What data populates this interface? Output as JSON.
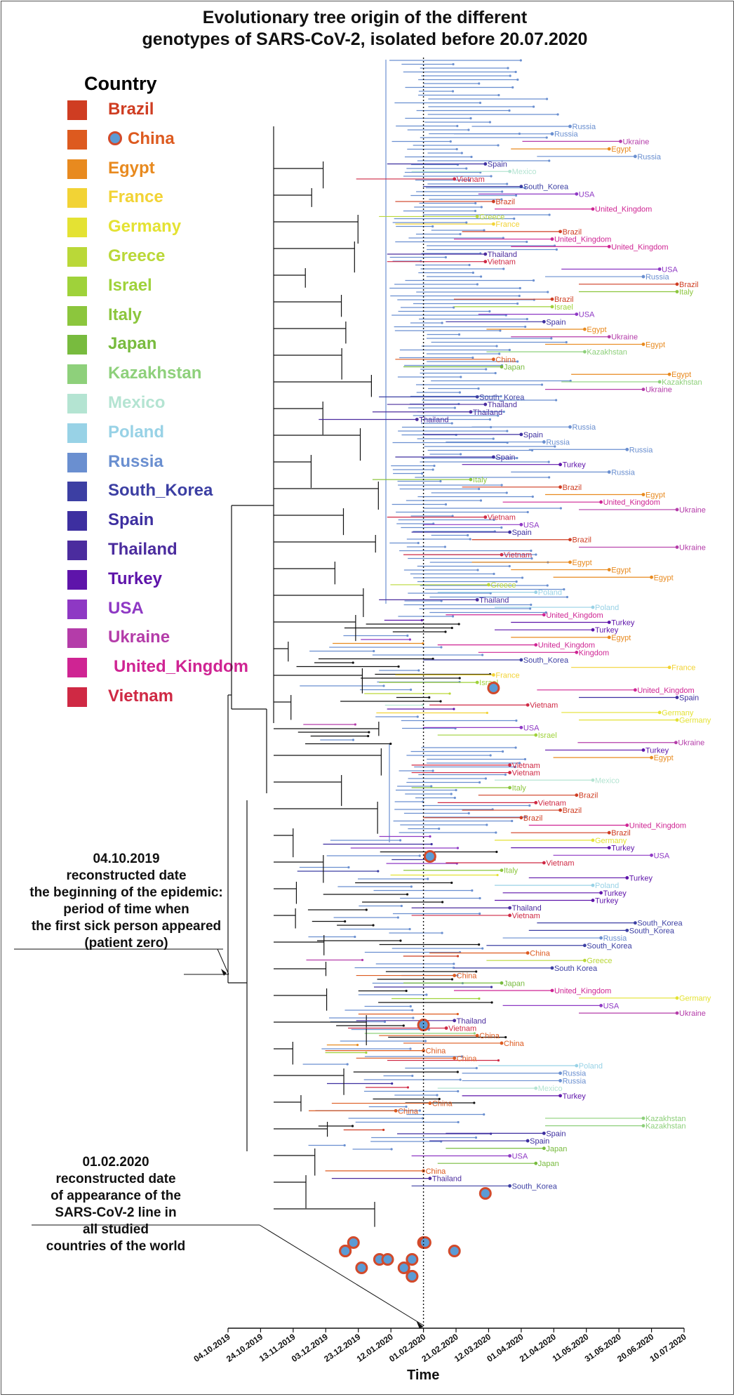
{
  "title_line1": "Evolutionary tree origin of the different",
  "title_line2": "genotypes of SARS-CoV-2, isolated before 20.07.2020",
  "legend_title": "Country",
  "legend": [
    {
      "name": "Brazil",
      "color": "#cf3d22"
    },
    {
      "name": "China",
      "color": "#dd5a1f",
      "marker": true
    },
    {
      "name": "Egypt",
      "color": "#e88a1f"
    },
    {
      "name": "France",
      "color": "#f2d335"
    },
    {
      "name": "Germany",
      "color": "#e4e233"
    },
    {
      "name": "Greece",
      "color": "#bad838"
    },
    {
      "name": "Israel",
      "color": "#9fd23a"
    },
    {
      "name": "Italy",
      "color": "#8cc63d"
    },
    {
      "name": "Japan",
      "color": "#78bb3e"
    },
    {
      "name": "Kazakhstan",
      "color": "#8ed07b"
    },
    {
      "name": "Mexico",
      "color": "#b4e4d2"
    },
    {
      "name": "Poland",
      "color": "#98d2e6"
    },
    {
      "name": "Russia",
      "color": "#6a8fd0"
    },
    {
      "name": "South_Korea",
      "color": "#3c3fa3"
    },
    {
      "name": "Spain",
      "color": "#3d2fa0"
    },
    {
      "name": "Thailand",
      "color": "#4b2c9e"
    },
    {
      "name": "Turkey",
      "color": "#5e14aa"
    },
    {
      "name": "USA",
      "color": "#8e38c4"
    },
    {
      "name": "Ukraine",
      "color": "#b43ca9"
    },
    {
      "name": "United_Kingdom",
      "color": "#cf2493"
    },
    {
      "name": "Vietnam",
      "color": "#cf2944"
    }
  ],
  "note_epidemic": [
    "04.10.2019",
    "reconstructed date",
    "the beginning of the epidemic:",
    "period of time when",
    "the first sick person appeared",
    "(patient zero)"
  ],
  "note_line": [
    "01.02.2020",
    "reconstructed date",
    "of appearance of the",
    "SARS-CoV-2 line in",
    "all studied",
    "countries of the world"
  ],
  "chart_data": {
    "type": "phylogenetic tree",
    "xlabel": "Time",
    "x_ticks": [
      "04.10.2019",
      "24.10.2019",
      "13.11.2019",
      "03.12.2019",
      "23.12.2019",
      "12.01.2020",
      "01.02.2020",
      "21.02.2020",
      "12.03.2020",
      "01.04.2020",
      "21.04.2020",
      "11.05.2020",
      "31.05.2020",
      "20.06.2020",
      "10.07.2020"
    ],
    "root_date": "04.10.2019",
    "reference_line_date": "01.02.2020",
    "tip_labels": [
      {
        "label": "Russia",
        "country": "Russia",
        "x": "01.05.2020"
      },
      {
        "label": "Russia",
        "country": "Russia",
        "x": "20.04.2020"
      },
      {
        "label": "Ukraine",
        "country": "Ukraine",
        "x": "01.06.2020"
      },
      {
        "label": "Egypt",
        "country": "Egypt",
        "x": "25.05.2020"
      },
      {
        "label": "Russia",
        "country": "Russia",
        "x": "10.06.2020"
      },
      {
        "label": "Spain",
        "country": "Spain",
        "x": "10.03.2020"
      },
      {
        "label": "Mexico",
        "country": "Mexico",
        "x": "25.03.2020"
      },
      {
        "label": "Vietnam",
        "country": "Vietnam",
        "x": "20.02.2020"
      },
      {
        "label": "South_Korea",
        "country": "South_Korea",
        "x": "01.04.2020"
      },
      {
        "label": "USA",
        "country": "USA",
        "x": "05.05.2020"
      },
      {
        "label": "Brazil",
        "country": "Brazil",
        "x": "15.03.2020"
      },
      {
        "label": "United_Kingdom",
        "country": "United_Kingdom",
        "x": "15.05.2020"
      },
      {
        "label": "Greece",
        "country": "Greece",
        "x": "05.03.2020"
      },
      {
        "label": "France",
        "country": "France",
        "x": "15.03.2020"
      },
      {
        "label": "Brazil",
        "country": "Brazil",
        "x": "25.04.2020"
      },
      {
        "label": "United_Kingdom",
        "country": "United_Kingdom",
        "x": "20.04.2020"
      },
      {
        "label": "United_Kingdom",
        "country": "United_Kingdom",
        "x": "25.05.2020"
      },
      {
        "label": "Thailand",
        "country": "Thailand",
        "x": "10.03.2020"
      },
      {
        "label": "Vietnam",
        "country": "Vietnam",
        "x": "10.03.2020"
      },
      {
        "label": "USA",
        "country": "USA",
        "x": "25.06.2020"
      },
      {
        "label": "Russia",
        "country": "Russia",
        "x": "15.06.2020"
      },
      {
        "label": "Brazil",
        "country": "Brazil",
        "x": "15.07.2020"
      },
      {
        "label": "Italy",
        "country": "Italy",
        "x": "10.07.2020"
      },
      {
        "label": "Brazil",
        "country": "Brazil",
        "x": "20.04.2020"
      },
      {
        "label": "Israel",
        "country": "Israel",
        "x": "20.04.2020"
      },
      {
        "label": "USA",
        "country": "USA",
        "x": "05.05.2020"
      },
      {
        "label": "Spain",
        "country": "Spain",
        "x": "15.04.2020"
      },
      {
        "label": "Egypt",
        "country": "Egypt",
        "x": "10.05.2020"
      },
      {
        "label": "Ukraine",
        "country": "Ukraine",
        "x": "25.05.2020"
      },
      {
        "label": "Egypt",
        "country": "Egypt",
        "x": "15.06.2020"
      },
      {
        "label": "Kazakhstan",
        "country": "Kazakhstan",
        "x": "10.05.2020"
      },
      {
        "label": "China",
        "country": "China",
        "x": "15.03.2020"
      },
      {
        "label": "Japan",
        "country": "Japan",
        "x": "20.03.2020"
      },
      {
        "label": "Egypt",
        "country": "Egypt",
        "x": "01.07.2020"
      },
      {
        "label": "Kazakhstan",
        "country": "Kazakhstan",
        "x": "25.06.2020"
      },
      {
        "label": "Ukraine",
        "country": "Ukraine",
        "x": "15.06.2020"
      },
      {
        "label": "South_Korea",
        "country": "South_Korea",
        "x": "05.03.2020"
      },
      {
        "label": "Thailand",
        "country": "Thailand",
        "x": "10.03.2020"
      },
      {
        "label": "Thailand",
        "country": "Thailand",
        "x": "01.03.2020"
      },
      {
        "label": "Thailand",
        "country": "Thailand",
        "x": "28.01.2020"
      },
      {
        "label": "Russia",
        "country": "Russia",
        "x": "01.05.2020"
      },
      {
        "label": "Spain",
        "country": "Spain",
        "x": "01.04.2020"
      },
      {
        "label": "Russia",
        "country": "Russia",
        "x": "15.04.2020"
      },
      {
        "label": "Russia",
        "country": "Russia",
        "x": "05.06.2020"
      },
      {
        "label": "Spain",
        "country": "Spain",
        "x": "15.03.2020"
      },
      {
        "label": "Turkey",
        "country": "Turkey",
        "x": "25.04.2020"
      },
      {
        "label": "Russia",
        "country": "Russia",
        "x": "25.05.2020"
      },
      {
        "label": "Italy",
        "country": "Italy",
        "x": "01.03.2020"
      },
      {
        "label": "Brazil",
        "country": "Brazil",
        "x": "25.04.2020"
      },
      {
        "label": "Egypt",
        "country": "Egypt",
        "x": "15.06.2020"
      },
      {
        "label": "United_Kingdom",
        "country": "United_Kingdom",
        "x": "20.05.2020"
      },
      {
        "label": "Ukraine",
        "country": "Ukraine",
        "x": "10.07.2020"
      },
      {
        "label": "Vietnam",
        "country": "Vietnam",
        "x": "10.03.2020"
      },
      {
        "label": "USA",
        "country": "USA",
        "x": "01.04.2020"
      },
      {
        "label": "Spain",
        "country": "Spain",
        "x": "25.03.2020"
      },
      {
        "label": "Brazil",
        "country": "Brazil",
        "x": "01.05.2020"
      },
      {
        "label": "Ukraine",
        "country": "Ukraine",
        "x": "10.07.2020"
      },
      {
        "label": "Vietnam",
        "country": "Vietnam",
        "x": "20.03.2020"
      },
      {
        "label": "Egypt",
        "country": "Egypt",
        "x": "01.05.2020"
      },
      {
        "label": "Egypt",
        "country": "Egypt",
        "x": "25.05.2020"
      },
      {
        "label": "Egypt",
        "country": "Egypt",
        "x": "20.06.2020"
      },
      {
        "label": "Greece",
        "country": "Greece",
        "x": "12.03.2020"
      },
      {
        "label": "Poland",
        "country": "Poland",
        "x": "10.04.2020"
      },
      {
        "label": "Thailand",
        "country": "Thailand",
        "x": "05.03.2020"
      },
      {
        "label": "Poland",
        "country": "Poland",
        "x": "15.05.2020"
      },
      {
        "label": "United_Kingdom",
        "country": "United_Kingdom",
        "x": "15.04.2020"
      },
      {
        "label": "Turkey",
        "country": "Turkey",
        "x": "25.05.2020"
      },
      {
        "label": "Turkey",
        "country": "Turkey",
        "x": "15.05.2020"
      },
      {
        "label": "Egypt",
        "country": "Egypt",
        "x": "25.05.2020"
      },
      {
        "label": "United_Kingdom",
        "country": "United_Kingdom",
        "x": "10.04.2020"
      },
      {
        "label": "Kingdom",
        "country": "United_Kingdom",
        "x": "05.05.2020"
      },
      {
        "label": "South_Korea",
        "country": "South_Korea",
        "x": "01.04.2020"
      },
      {
        "label": "France",
        "country": "France",
        "x": "01.07.2020"
      },
      {
        "label": "France",
        "country": "France",
        "x": "15.03.2020"
      },
      {
        "label": "Israel",
        "country": "Israel",
        "x": "05.03.2020"
      },
      {
        "label": "United_Kingdom",
        "country": "United_Kingdom",
        "x": "10.06.2020"
      },
      {
        "label": "Spain",
        "country": "Spain",
        "x": "10.07.2020"
      },
      {
        "label": "Vietnam",
        "country": "Vietnam",
        "x": "05.04.2020"
      },
      {
        "label": "Germany",
        "country": "Germany",
        "x": "25.06.2020"
      },
      {
        "label": "Germany",
        "country": "Germany",
        "x": "15.07.2020"
      },
      {
        "label": "USA",
        "country": "USA",
        "x": "01.04.2020"
      },
      {
        "label": "Israel",
        "country": "Israel",
        "x": "10.04.2020"
      },
      {
        "label": "Ukraine",
        "country": "Ukraine",
        "x": "05.07.2020"
      },
      {
        "label": "Turkey",
        "country": "Turkey",
        "x": "15.06.2020"
      },
      {
        "label": "Egypt",
        "country": "Egypt",
        "x": "20.06.2020"
      },
      {
        "label": "Vietnam",
        "country": "Vietnam",
        "x": "25.03.2020"
      },
      {
        "label": "Vietnam",
        "country": "Vietnam",
        "x": "25.03.2020"
      },
      {
        "label": "Mexico",
        "country": "Mexico",
        "x": "15.05.2020"
      },
      {
        "label": "Italy",
        "country": "Italy",
        "x": "25.03.2020"
      },
      {
        "label": "Brazil",
        "country": "Brazil",
        "x": "05.05.2020"
      },
      {
        "label": "Vietnam",
        "country": "Vietnam",
        "x": "10.04.2020"
      },
      {
        "label": "Brazil",
        "country": "Brazil",
        "x": "25.04.2020"
      },
      {
        "label": "Brazil",
        "country": "Brazil",
        "x": "01.04.2020"
      },
      {
        "label": "United_Kingdom",
        "country": "United_Kingdom",
        "x": "05.06.2020"
      },
      {
        "label": "Brazil",
        "country": "Brazil",
        "x": "25.05.2020"
      },
      {
        "label": "Germany",
        "country": "Germany",
        "x": "15.05.2020"
      },
      {
        "label": "Turkey",
        "country": "Turkey",
        "x": "25.05.2020"
      },
      {
        "label": "USA",
        "country": "USA",
        "x": "20.06.2020"
      },
      {
        "label": "Vietnam",
        "country": "Vietnam",
        "x": "15.04.2020"
      },
      {
        "label": "Italy",
        "country": "Italy",
        "x": "20.03.2020"
      },
      {
        "label": "Turkey",
        "country": "Turkey",
        "x": "05.06.2020"
      },
      {
        "label": "Poland",
        "country": "Poland",
        "x": "15.05.2020"
      },
      {
        "label": "Turkey",
        "country": "Turkey",
        "x": "20.05.2020"
      },
      {
        "label": "Turkey",
        "country": "Turkey",
        "x": "15.05.2020"
      },
      {
        "label": "Thailand",
        "country": "Thailand",
        "x": "25.03.2020"
      },
      {
        "label": "Vietnam",
        "country": "Vietnam",
        "x": "25.03.2020"
      },
      {
        "label": "South_Korea",
        "country": "South_Korea",
        "x": "10.06.2020"
      },
      {
        "label": "South_Korea",
        "country": "South_Korea",
        "x": "05.06.2020"
      },
      {
        "label": "Russia",
        "country": "Russia",
        "x": "20.05.2020"
      },
      {
        "label": "South_Korea",
        "country": "South_Korea",
        "x": "10.05.2020"
      },
      {
        "label": "China",
        "country": "China",
        "x": "05.04.2020"
      },
      {
        "label": "Greece",
        "country": "Greece",
        "x": "10.05.2020"
      },
      {
        "label": "South Korea",
        "country": "South_Korea",
        "x": "20.04.2020"
      },
      {
        "label": "China",
        "country": "China",
        "x": "20.02.2020"
      },
      {
        "label": "Japan",
        "country": "Japan",
        "x": "20.03.2020"
      },
      {
        "label": "United_Kingdom",
        "country": "United_Kingdom",
        "x": "20.04.2020"
      },
      {
        "label": "Germany",
        "country": "Germany",
        "x": "20.07.2020"
      },
      {
        "label": "USA",
        "country": "USA",
        "x": "20.05.2020"
      },
      {
        "label": "Ukraine",
        "country": "Ukraine",
        "x": "20.07.2020"
      },
      {
        "label": "Thailand",
        "country": "Thailand",
        "x": "20.02.2020"
      },
      {
        "label": "Vietnam",
        "country": "Vietnam",
        "x": "15.02.2020"
      },
      {
        "label": "China",
        "country": "China",
        "x": "05.03.2020"
      },
      {
        "label": "China",
        "country": "China",
        "x": "20.03.2020"
      },
      {
        "label": "China",
        "country": "China",
        "x": "01.02.2020"
      },
      {
        "label": "China",
        "country": "China",
        "x": "20.02.2020"
      },
      {
        "label": "Poland",
        "country": "Poland",
        "x": "05.05.2020"
      },
      {
        "label": "Russia",
        "country": "Russia",
        "x": "25.04.2020"
      },
      {
        "label": "Russia",
        "country": "Russia",
        "x": "25.04.2020"
      },
      {
        "label": "Mexico",
        "country": "Mexico",
        "x": "10.04.2020"
      },
      {
        "label": "Turkey",
        "country": "Turkey",
        "x": "25.04.2020"
      },
      {
        "label": "China",
        "country": "China",
        "x": "05.02.2020"
      },
      {
        "label": "China",
        "country": "China",
        "x": "15.01.2020"
      },
      {
        "label": "Kazakhstan",
        "country": "Kazakhstan",
        "x": "15.06.2020"
      },
      {
        "label": "Kazakhstan",
        "country": "Kazakhstan",
        "x": "15.06.2020"
      },
      {
        "label": "Spain",
        "country": "Spain",
        "x": "15.04.2020"
      },
      {
        "label": "Spain",
        "country": "Spain",
        "x": "05.04.2020"
      },
      {
        "label": "Japan",
        "country": "Japan",
        "x": "15.04.2020"
      },
      {
        "label": "USA",
        "country": "USA",
        "x": "25.03.2020"
      },
      {
        "label": "Japan",
        "country": "Japan",
        "x": "10.04.2020"
      },
      {
        "label": "China",
        "country": "China",
        "x": "01.02.2020"
      },
      {
        "label": "Thailand",
        "country": "Thailand",
        "x": "05.02.2020"
      },
      {
        "label": "South_Korea",
        "country": "South_Korea",
        "x": "25.03.2020"
      }
    ],
    "china_markers_x": [
      "15.03.2020",
      "05.02.2020",
      "01.02.2020",
      "10.03.2020",
      "01.02.2020",
      "15.12.2019",
      "05.01.2020",
      "20.01.2020",
      "25.01.2020",
      "02.02.2020",
      "20.02.2020",
      "10.01.2020",
      "25.12.2019",
      "25.01.2020",
      "20.12.2019",
      "15.12.2019",
      "25.01.2020"
    ]
  }
}
